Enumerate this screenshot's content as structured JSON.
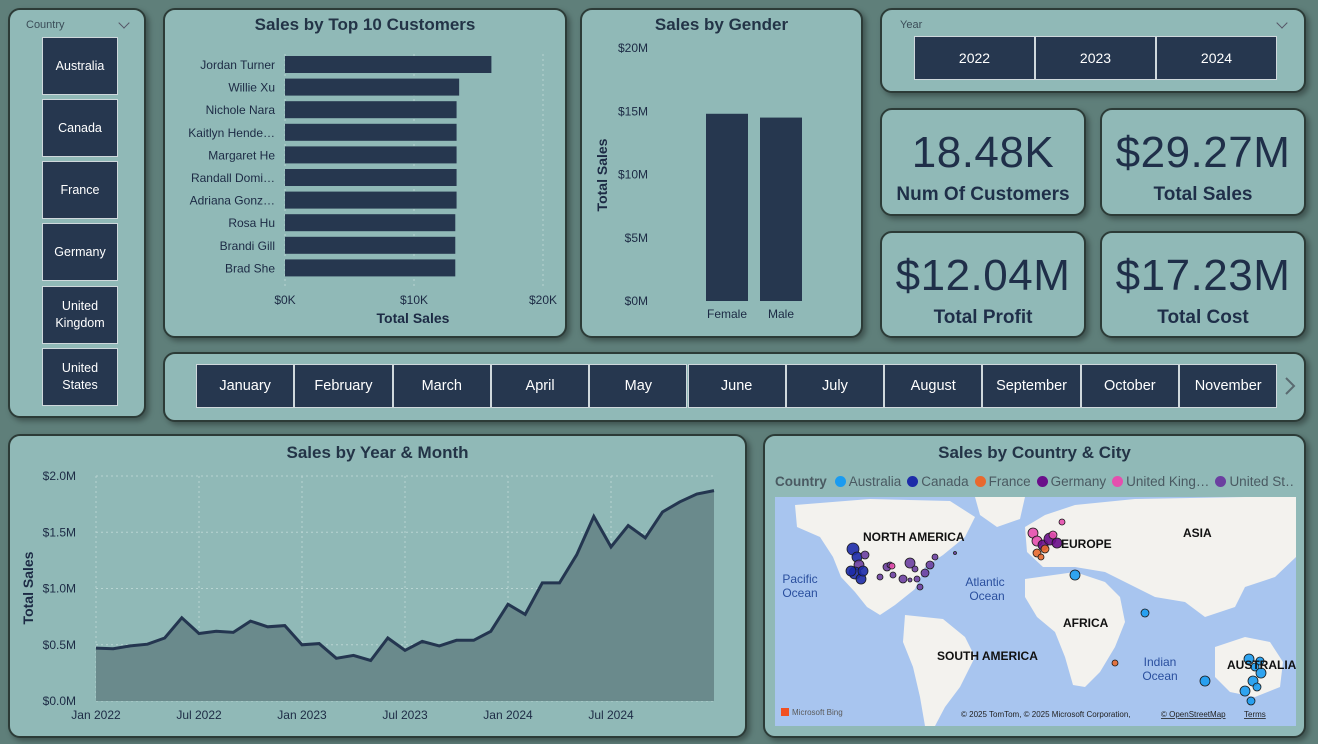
{
  "country_slicer": {
    "label": "Country",
    "items": [
      "Australia",
      "Canada",
      "France",
      "Germany",
      "United Kingdom",
      "United States"
    ]
  },
  "top_customers": {
    "title": "Sales by Top 10 Customers",
    "xlabel": "Total Sales",
    "ticks": [
      "$0K",
      "$10K",
      "$20K"
    ]
  },
  "gender": {
    "title": "Sales by Gender",
    "ylabel": "Total Sales",
    "ticks": [
      "$0M",
      "$5M",
      "$10M",
      "$15M",
      "$20M"
    ]
  },
  "year_slicer": {
    "label": "Year",
    "items": [
      "2022",
      "2023",
      "2024"
    ]
  },
  "kpis": {
    "customers": {
      "value": "18.48K",
      "label": "Num Of Customers"
    },
    "sales": {
      "value": "$29.27M",
      "label": "Total Sales"
    },
    "profit": {
      "value": "$12.04M",
      "label": "Total Profit"
    },
    "cost": {
      "value": "$17.23M",
      "label": "Total Cost"
    }
  },
  "month_slicer": {
    "items": [
      "January",
      "February",
      "March",
      "April",
      "May",
      "June",
      "July",
      "August",
      "September",
      "October",
      "November"
    ]
  },
  "trend": {
    "title": "Sales by Year & Month",
    "ylabel": "Total Sales",
    "yticks": [
      "$0.0M",
      "$0.5M",
      "$1.0M",
      "$1.5M",
      "$2.0M"
    ],
    "xticks": [
      "Jan 2022",
      "Jul 2022",
      "Jan 2023",
      "Jul 2023",
      "Jan 2024",
      "Jul 2024"
    ]
  },
  "map": {
    "title": "Sales by Country & City",
    "legend_title": "Country",
    "legend": [
      {
        "name": "Australia",
        "color": "#1a9bf0"
      },
      {
        "name": "Canada",
        "color": "#1d2ba8"
      },
      {
        "name": "France",
        "color": "#e8692e"
      },
      {
        "name": "Germany",
        "color": "#6a0e8a"
      },
      {
        "name": "United King…",
        "color": "#e54fae"
      },
      {
        "name": "United St…",
        "color": "#6b3fa0"
      }
    ],
    "labels": [
      "NORTH AMERICA",
      "EUROPE",
      "ASIA",
      "AFRICA",
      "SOUTH AMERICA",
      "AUSTRALIA",
      "Pacific",
      "Ocean",
      "Atlantic",
      "Ocean",
      "Indian",
      "Ocean"
    ],
    "bing": "Microsoft Bing",
    "attribution": "© 2025 TomTom, © 2025 Microsoft Corporation,",
    "osm": "© OpenStreetMap",
    "terms": "Terms"
  },
  "chart_data": [
    {
      "type": "bar",
      "title": "Sales by Top 10 Customers",
      "xlabel": "Total Sales",
      "ylabel": "",
      "categories": [
        "Jordan Turner",
        "Willie Xu",
        "Nichole Nara",
        "Kaitlyn Hende…",
        "Margaret He",
        "Randall Domi…",
        "Adriana Gonz…",
        "Rosa Hu",
        "Brandi Gill",
        "Brad She"
      ],
      "values": [
        16000,
        13500,
        13300,
        13300,
        13300,
        13300,
        13300,
        13200,
        13200,
        13200
      ],
      "xlim": [
        0,
        20000
      ],
      "orientation": "horizontal",
      "grid": true
    },
    {
      "type": "bar",
      "title": "Sales by Gender",
      "xlabel": "",
      "ylabel": "Total Sales",
      "categories": [
        "Female",
        "Male"
      ],
      "values": [
        14800000,
        14500000
      ],
      "ylim": [
        0,
        20000000
      ]
    },
    {
      "type": "area",
      "title": "Sales by Year & Month",
      "xlabel": "",
      "ylabel": "Total Sales",
      "ylim": [
        0,
        2000000
      ],
      "x": [
        "Jan 2022",
        "Feb 2022",
        "Mar 2022",
        "Apr 2022",
        "May 2022",
        "Jun 2022",
        "Jul 2022",
        "Aug 2022",
        "Sep 2022",
        "Oct 2022",
        "Nov 2022",
        "Dec 2022",
        "Jan 2023",
        "Feb 2023",
        "Mar 2023",
        "Apr 2023",
        "May 2023",
        "Jun 2023",
        "Jul 2023",
        "Aug 2023",
        "Sep 2023",
        "Oct 2023",
        "Nov 2023",
        "Dec 2023",
        "Jan 2024",
        "Feb 2024",
        "Mar 2024",
        "Apr 2024",
        "May 2024",
        "Jun 2024",
        "Jul 2024",
        "Aug 2024",
        "Sep 2024",
        "Oct 2024",
        "Nov 2024",
        "Dec 2024",
        "Jan 2025"
      ],
      "values": [
        470000,
        465000,
        490000,
        505000,
        560000,
        740000,
        600000,
        620000,
        610000,
        710000,
        660000,
        670000,
        500000,
        510000,
        380000,
        405000,
        360000,
        560000,
        450000,
        530000,
        490000,
        540000,
        540000,
        620000,
        860000,
        770000,
        1050000,
        1050000,
        1300000,
        1640000,
        1370000,
        1560000,
        1450000,
        1680000,
        1770000,
        1840000,
        1870000
      ],
      "grid": true
    }
  ]
}
